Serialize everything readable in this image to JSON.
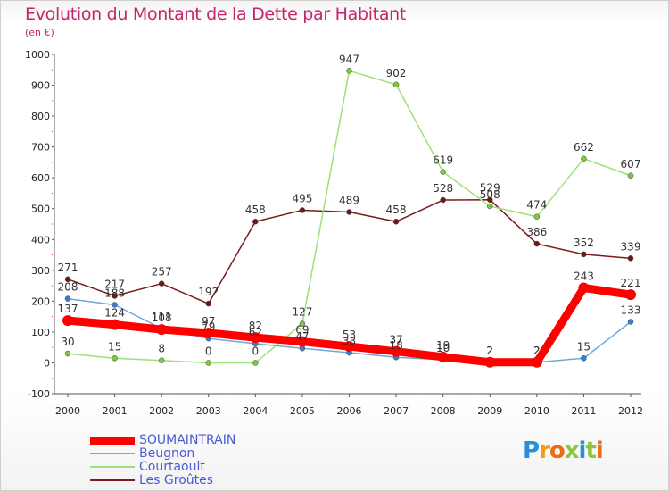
{
  "page": {
    "title": "Evolution du Montant de la Dette par Habitant",
    "subtitle": "(en €)"
  },
  "logo": {
    "text": "Proxiti",
    "letters": [
      {
        "ch": "P",
        "color": "#2a8fd6"
      },
      {
        "ch": "r",
        "color": "#f39a1a"
      },
      {
        "ch": "o",
        "color": "#ef6c14"
      },
      {
        "ch": "x",
        "color": "#8cc63e"
      },
      {
        "ch": "i",
        "color": "#2a8fd6"
      },
      {
        "ch": "t",
        "color": "#8cc63e"
      },
      {
        "ch": "i",
        "color": "#ef6c14"
      }
    ]
  },
  "chart_data": {
    "type": "line",
    "title": "Evolution du Montant de la Dette par Habitant",
    "ylabel": "(en €)",
    "xlabel": "",
    "ylim": [
      -100,
      1000
    ],
    "yticks": [
      -100,
      0,
      100,
      200,
      300,
      400,
      500,
      600,
      700,
      800,
      900,
      1000
    ],
    "categories": [
      "2000",
      "2001",
      "2002",
      "2003",
      "2004",
      "2005",
      "2006",
      "2007",
      "2008",
      "2009",
      "2010",
      "2011",
      "2012"
    ],
    "grid": false,
    "legend_position": "bottom-left",
    "series": [
      {
        "name": "Les Groûtes",
        "color": "#7a1c1c",
        "marker": "#6b1a1a",
        "values": [
          271,
          217,
          257,
          192,
          458,
          495,
          489,
          458,
          528,
          529,
          386,
          352,
          339
        ],
        "labels": [
          "271",
          "217",
          "257",
          "192",
          "458",
          "495",
          "489",
          "458",
          "528",
          "529",
          "386",
          "352",
          "339"
        ]
      },
      {
        "name": "Courtaoult",
        "color": "#9ee07a",
        "marker": "#7dc83c",
        "values": [
          30,
          15,
          8,
          0,
          0,
          127,
          947,
          902,
          619,
          508,
          474,
          662,
          607
        ],
        "labels": [
          "30",
          "15",
          "8",
          "0",
          "0",
          "127",
          "947",
          "902",
          "619",
          "508",
          "474",
          "662",
          "607"
        ]
      },
      {
        "name": "Beugnon",
        "color": "#6fa8dc",
        "marker": "#3d7cc9",
        "values": [
          208,
          188,
          111,
          79,
          62,
          47,
          33,
          18,
          10,
          2,
          2,
          15,
          133
        ],
        "labels": [
          "208",
          "188",
          "111",
          "79",
          "62",
          "47",
          "33",
          "18",
          "10",
          "2",
          "2",
          "15",
          "133"
        ]
      },
      {
        "name": "SOUMAINTRAIN",
        "color": "#ff0000",
        "marker": "#ff0000",
        "values": [
          137,
          124,
          108,
          97,
          82,
          69,
          53,
          37,
          19,
          2,
          2,
          243,
          221
        ],
        "labels": [
          "137",
          "124",
          "108",
          "97",
          "82",
          "69",
          "53",
          "37",
          "19",
          "2",
          "2",
          "243",
          "221"
        ]
      }
    ]
  },
  "legend": {
    "items": [
      {
        "name": "SOUMAINTRAIN",
        "color": "#ff0000",
        "text_color": "#4a5bd4",
        "thickness": 9
      },
      {
        "name": "Beugnon",
        "color": "#6fa8dc",
        "text_color": "#4a5bd4",
        "thickness": 2
      },
      {
        "name": "Courtaoult",
        "color": "#9ee07a",
        "text_color": "#4a5bd4",
        "thickness": 2
      },
      {
        "name": "Les Groûtes",
        "color": "#7a1c1c",
        "text_color": "#4a5bd4",
        "thickness": 2
      }
    ]
  }
}
